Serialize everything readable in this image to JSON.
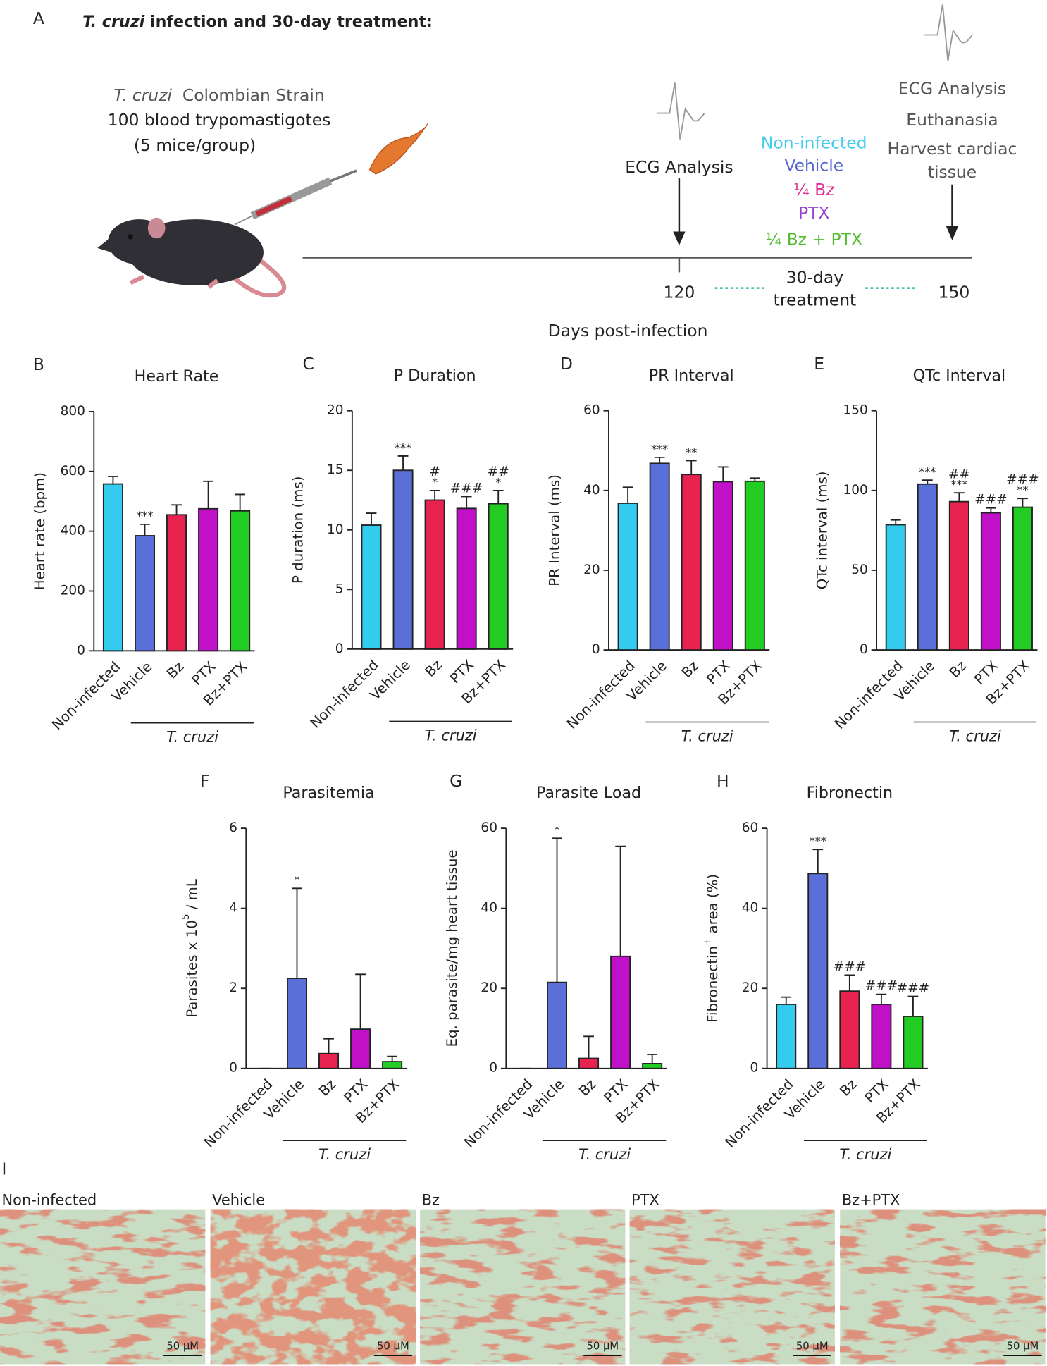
{
  "panel_a": {
    "letter": "A",
    "title_italic": "T. cruzi",
    "title_rest": " infection and 30-day treatment:",
    "strain_italic": "T. cruzi",
    "strain_rest": "  Colombian Strain",
    "inoculum": "100 blood trypomastigotes",
    "mice": "(5 mice/group)",
    "ecg_first": "ECG Analysis",
    "groups": [
      "Non-infected",
      "Vehicle",
      "¼ Bz",
      "PTX",
      "¼ Bz + PTX"
    ],
    "end_steps": [
      "ECG Analysis",
      "Euthanasia",
      "Harvest cardiac",
      "tissue"
    ],
    "timeline": {
      "start": 120,
      "end": 150,
      "treatment_1": "30-day",
      "treatment_2": "treatment",
      "axis_label": "Days post-infection"
    }
  },
  "chart_data": [
    {
      "type": "bar",
      "panel": "B",
      "title": "Heart Rate",
      "ylabel": "Heart rate (bpm)",
      "categories": [
        "Non-infected",
        "Vehicle",
        "Bz",
        "PTX",
        "Bz+PTX"
      ],
      "group_label": "T. cruzi",
      "colors": [
        "#33ccee",
        "#5b6fd8",
        "#e8234f",
        "#c010c8",
        "#22cc22"
      ],
      "values": [
        558,
        385,
        455,
        475,
        468
      ],
      "errors": [
        25,
        38,
        33,
        92,
        55
      ],
      "annotations": [
        null,
        [
          "***"
        ],
        null,
        null,
        null
      ],
      "ylim": [
        0,
        800
      ],
      "yticks": [
        0,
        200,
        400,
        600,
        800
      ]
    },
    {
      "type": "bar",
      "panel": "C",
      "title": "P Duration",
      "ylabel": "P duration (ms)",
      "categories": [
        "Non-infected",
        "Vehicle",
        "Bz",
        "PTX",
        "Bz+PTX"
      ],
      "group_label": "T. cruzi",
      "colors": [
        "#33ccee",
        "#5b6fd8",
        "#e8234f",
        "#c010c8",
        "#22cc22"
      ],
      "values": [
        10.4,
        15.0,
        12.5,
        11.8,
        12.2
      ],
      "errors": [
        1.0,
        1.2,
        0.8,
        1.0,
        1.1
      ],
      "annotations": [
        null,
        [
          "***"
        ],
        [
          "#",
          "*"
        ],
        [
          "###"
        ],
        [
          "##",
          "*"
        ]
      ],
      "ylim": [
        0,
        20
      ],
      "yticks": [
        0,
        5,
        10,
        15,
        20
      ]
    },
    {
      "type": "bar",
      "panel": "D",
      "title": "PR Interval",
      "ylabel": "PR Interval (ms)",
      "categories": [
        "Non-infected",
        "Vehicle",
        "Bz",
        "PTX",
        "Bz+PTX"
      ],
      "group_label": "T. cruzi",
      "colors": [
        "#33ccee",
        "#5b6fd8",
        "#e8234f",
        "#c010c8",
        "#22cc22"
      ],
      "values": [
        36.8,
        46.8,
        44,
        42.2,
        42.3
      ],
      "errors": [
        4,
        1.5,
        3.5,
        3.7,
        0.8
      ],
      "annotations": [
        null,
        [
          "***"
        ],
        [
          "**"
        ],
        null,
        null
      ],
      "ylim": [
        0,
        60
      ],
      "yticks": [
        0,
        20,
        40,
        60
      ]
    },
    {
      "type": "bar",
      "panel": "E",
      "title": "QTc Interval",
      "ylabel": "QTc interval (ms)",
      "categories": [
        "Non-infected",
        "Vehicle",
        "Bz",
        "PTX",
        "Bz+PTX"
      ],
      "group_label": "T. cruzi",
      "colors": [
        "#33ccee",
        "#5b6fd8",
        "#e8234f",
        "#c010c8",
        "#22cc22"
      ],
      "values": [
        78.5,
        104,
        93,
        86,
        89.5
      ],
      "errors": [
        3,
        2.5,
        5.5,
        3,
        5.5
      ],
      "annotations": [
        null,
        [
          "***"
        ],
        [
          "##",
          "***"
        ],
        [
          "###"
        ],
        [
          "###",
          "**"
        ]
      ],
      "ylim": [
        0,
        150
      ],
      "yticks": [
        0,
        50,
        100,
        150
      ]
    },
    {
      "type": "bar",
      "panel": "F",
      "title": "Parasitemia",
      "ylabel": "Parasites x 10",
      "ylabel_sup": "5",
      "ylabel_end": " / mL",
      "categories": [
        "Non-infected",
        "Vehicle",
        "Bz",
        "PTX",
        "Bz+PTX"
      ],
      "group_label": "T. cruzi",
      "colors": [
        "#33ccee",
        "#5b6fd8",
        "#e8234f",
        "#c010c8",
        "#22cc22"
      ],
      "values": [
        0,
        2.25,
        0.37,
        0.98,
        0.17
      ],
      "errors": [
        0,
        2.25,
        0.37,
        1.37,
        0.13
      ],
      "annotations": [
        null,
        [
          "*"
        ],
        null,
        null,
        null
      ],
      "ylim": [
        0,
        6
      ],
      "yticks": [
        0,
        2,
        4,
        6
      ]
    },
    {
      "type": "bar",
      "panel": "G",
      "title": "Parasite Load",
      "ylabel": "Eq. parasite/mg heart tissue",
      "categories": [
        "Non-infected",
        "Vehicle",
        "Bz",
        "PTX",
        "Bz+PTX"
      ],
      "group_label": "T. cruzi",
      "colors": [
        "#33ccee",
        "#5b6fd8",
        "#e8234f",
        "#c010c8",
        "#22cc22"
      ],
      "values": [
        0,
        21.5,
        2.5,
        28,
        1.2
      ],
      "errors": [
        0,
        36,
        5.5,
        27.5,
        2.3
      ],
      "annotations": [
        null,
        [
          "*"
        ],
        null,
        null,
        null
      ],
      "ylim": [
        0,
        60
      ],
      "yticks": [
        0,
        20,
        40,
        60
      ]
    },
    {
      "type": "bar",
      "panel": "H",
      "title": "Fibronectin",
      "ylabel": "Fibronectin",
      "ylabel_sup": "+",
      "ylabel_end": " area (%)",
      "categories": [
        "Non-infected",
        "Vehicle",
        "Bz",
        "PTX",
        "Bz+PTX"
      ],
      "group_label": "T. cruzi",
      "colors": [
        "#33ccee",
        "#5b6fd8",
        "#e8234f",
        "#c010c8",
        "#22cc22"
      ],
      "values": [
        16,
        48.7,
        19.3,
        16,
        13
      ],
      "errors": [
        1.8,
        6,
        4,
        2.5,
        5
      ],
      "annotations": [
        null,
        [
          "***"
        ],
        [
          "###"
        ],
        [
          "###"
        ],
        [
          "###"
        ]
      ],
      "ylim": [
        0,
        60
      ],
      "yticks": [
        0,
        20,
        40,
        60
      ]
    }
  ],
  "panel_i": {
    "letter": "I",
    "labels": [
      "Non-infected",
      "Vehicle",
      "Bz",
      "PTX",
      "Bz+PTX"
    ],
    "scale_bar": "50 μM"
  }
}
